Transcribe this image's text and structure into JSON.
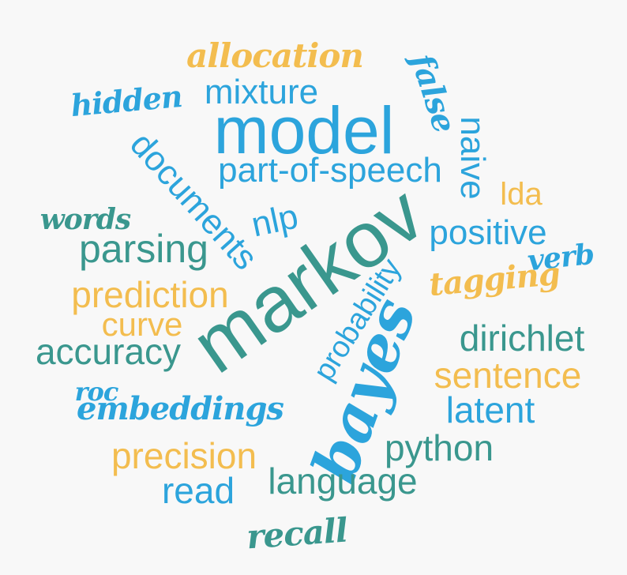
{
  "word_cloud": {
    "words": [
      {
        "key": "allocation",
        "text": "allocation",
        "color": "#f3bd4f",
        "style": "script"
      },
      {
        "key": "false",
        "text": "false",
        "color": "#2ca4dc",
        "style": "script"
      },
      {
        "key": "hidden",
        "text": "hidden",
        "color": "#2ca4dc",
        "style": "script"
      },
      {
        "key": "mixture",
        "text": "mixture",
        "color": "#2ca4dc",
        "style": "sans"
      },
      {
        "key": "model",
        "text": "model",
        "color": "#2ca4dc",
        "style": "sans"
      },
      {
        "key": "naive",
        "text": "naive",
        "color": "#2ca4dc",
        "style": "sans"
      },
      {
        "key": "documents",
        "text": "documents",
        "color": "#2ca4dc",
        "style": "sans"
      },
      {
        "key": "partofspeech",
        "text": "part-of-speech",
        "color": "#2ca4dc",
        "style": "sans"
      },
      {
        "key": "lda",
        "text": "lda",
        "color": "#f3bd4f",
        "style": "sans"
      },
      {
        "key": "words",
        "text": "words",
        "color": "#3a978e",
        "style": "script"
      },
      {
        "key": "nlp",
        "text": "nlp",
        "color": "#2ca4dc",
        "style": "sans"
      },
      {
        "key": "markov",
        "text": "markov",
        "color": "#3a978e",
        "style": "sans"
      },
      {
        "key": "positive",
        "text": "positive",
        "color": "#2ca4dc",
        "style": "sans"
      },
      {
        "key": "verb",
        "text": "verb",
        "color": "#2ca4dc",
        "style": "script"
      },
      {
        "key": "parsing",
        "text": "parsing",
        "color": "#3a978e",
        "style": "sans"
      },
      {
        "key": "probability",
        "text": "probability",
        "color": "#2ca4dc",
        "style": "sans"
      },
      {
        "key": "tagging",
        "text": "tagging",
        "color": "#f3bd4f",
        "style": "script"
      },
      {
        "key": "prediction",
        "text": "prediction",
        "color": "#f3bd4f",
        "style": "sans"
      },
      {
        "key": "curve",
        "text": "curve",
        "color": "#f3bd4f",
        "style": "sans"
      },
      {
        "key": "accuracy",
        "text": "accuracy",
        "color": "#3a978e",
        "style": "sans"
      },
      {
        "key": "dirichlet",
        "text": "dirichlet",
        "color": "#3a978e",
        "style": "sans"
      },
      {
        "key": "bayes",
        "text": "bayes",
        "color": "#2ca4dc",
        "style": "script"
      },
      {
        "key": "sentence",
        "text": "sentence",
        "color": "#f3bd4f",
        "style": "sans"
      },
      {
        "key": "roc",
        "text": "roc",
        "color": "#2ca4dc",
        "style": "script"
      },
      {
        "key": "embeddings",
        "text": "embeddings",
        "color": "#2ca4dc",
        "style": "script"
      },
      {
        "key": "latent",
        "text": "latent",
        "color": "#2ca4dc",
        "style": "sans"
      },
      {
        "key": "python",
        "text": "python",
        "color": "#3a978e",
        "style": "sans"
      },
      {
        "key": "precision",
        "text": "precision",
        "color": "#f3bd4f",
        "style": "sans"
      },
      {
        "key": "language",
        "text": "language",
        "color": "#3a978e",
        "style": "sans"
      },
      {
        "key": "read",
        "text": "read",
        "color": "#2ca4dc",
        "style": "sans"
      },
      {
        "key": "recall",
        "text": "recall",
        "color": "#3a978e",
        "style": "script"
      }
    ]
  }
}
